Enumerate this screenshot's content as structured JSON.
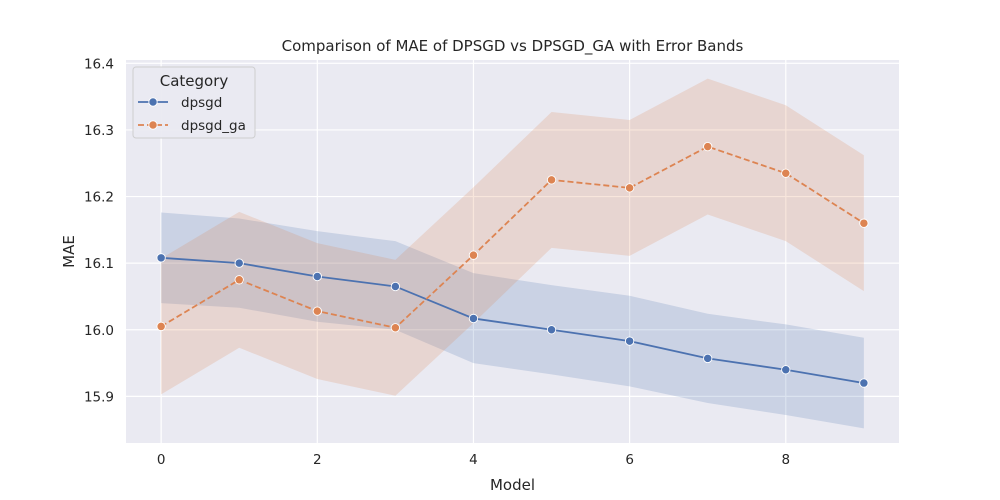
{
  "chart_data": {
    "type": "line",
    "title": "Comparison of MAE of DPSGD vs DPSGD_GA with Error Bands",
    "xlabel": "Model",
    "ylabel": "MAE",
    "xlim": [
      -0.45,
      9.45
    ],
    "ylim": [
      15.83,
      16.405
    ],
    "xticks": [
      0,
      2,
      4,
      6,
      8
    ],
    "yticks": [
      15.9,
      16.0,
      16.1,
      16.2,
      16.3,
      16.4
    ],
    "ytick_labels": [
      "15.9",
      "16.0",
      "16.1",
      "16.2",
      "16.3",
      "16.4"
    ],
    "grid": true,
    "legend_title": "Category",
    "legend_position": "top-left",
    "x": [
      0,
      1,
      2,
      3,
      4,
      5,
      6,
      7,
      8,
      9
    ],
    "series": [
      {
        "name": "dpsgd",
        "color": "#4c72b0",
        "linestyle": "solid",
        "values": [
          16.108,
          16.1,
          16.08,
          16.065,
          16.017,
          16.0,
          15.983,
          15.957,
          15.94,
          15.92
        ],
        "lower": [
          16.04,
          16.033,
          16.012,
          16.0,
          15.95,
          15.933,
          15.915,
          15.89,
          15.872,
          15.852
        ],
        "upper": [
          16.176,
          16.167,
          16.148,
          16.133,
          16.085,
          16.067,
          16.051,
          16.024,
          16.008,
          15.988
        ]
      },
      {
        "name": "dpsgd_ga",
        "color": "#dd8452",
        "linestyle": "dashed",
        "values": [
          16.005,
          16.075,
          16.028,
          16.003,
          16.112,
          16.225,
          16.213,
          16.275,
          16.235,
          16.16
        ],
        "lower": [
          15.903,
          15.973,
          15.926,
          15.901,
          16.01,
          16.123,
          16.111,
          16.173,
          16.133,
          16.058
        ],
        "upper": [
          16.107,
          16.177,
          16.13,
          16.105,
          16.214,
          16.327,
          16.315,
          16.377,
          16.337,
          16.262
        ]
      }
    ]
  }
}
